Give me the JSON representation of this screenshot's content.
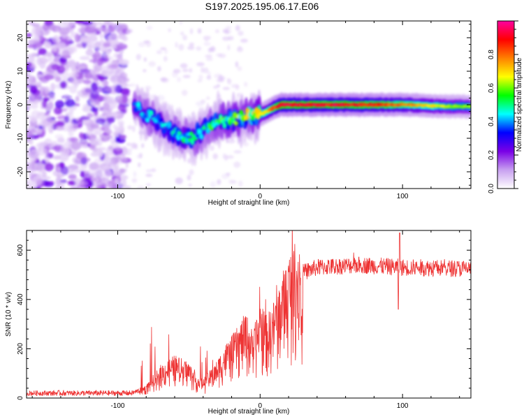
{
  "title": "S197.2025.195.06.17.E06",
  "chart_data": [
    {
      "type": "heatmap",
      "xlabel": "Height of straight line (km)",
      "ylabel": "Frequency (Hz)",
      "xlim": [
        -164,
        148
      ],
      "ylim": [
        -25,
        25
      ],
      "x_ticks": [
        -100,
        0,
        100
      ],
      "y_ticks": [
        20,
        10,
        0,
        -10,
        -20
      ],
      "colorbar": {
        "label": "Normalized spectral amplitude",
        "range": [
          0,
          1
        ],
        "ticks": [
          "0.0",
          "0.2",
          "0.4",
          "0.6",
          "0.8"
        ],
        "colors": [
          "#ffffff",
          "#c8a0f0",
          "#7a00e6",
          "#0000ff",
          "#00ffff",
          "#00ff00",
          "#ffff00",
          "#ff8000",
          "#ff0000",
          "#ff00a0"
        ]
      },
      "ridge": [
        {
          "x": -88,
          "y": 0,
          "amp": 0.35
        },
        {
          "x": -80,
          "y": -3,
          "amp": 0.4
        },
        {
          "x": -72,
          "y": -5,
          "amp": 0.4
        },
        {
          "x": -64,
          "y": -7.5,
          "amp": 0.4
        },
        {
          "x": -56,
          "y": -9.5,
          "amp": 0.42
        },
        {
          "x": -48,
          "y": -10,
          "amp": 0.45
        },
        {
          "x": -40,
          "y": -8,
          "amp": 0.45
        },
        {
          "x": -32,
          "y": -5.5,
          "amp": 0.48
        },
        {
          "x": -24,
          "y": -4.5,
          "amp": 0.5
        },
        {
          "x": -16,
          "y": -4,
          "amp": 0.55
        },
        {
          "x": -8,
          "y": -3.5,
          "amp": 0.6
        },
        {
          "x": 0,
          "y": -3,
          "amp": 0.68
        },
        {
          "x": 5,
          "y": -2,
          "amp": 0.72
        },
        {
          "x": 10,
          "y": -0.8,
          "amp": 0.85
        },
        {
          "x": 15,
          "y": 0,
          "amp": 0.95
        },
        {
          "x": 40,
          "y": 0,
          "amp": 0.92
        },
        {
          "x": 70,
          "y": 0,
          "amp": 0.9
        },
        {
          "x": 100,
          "y": 0,
          "amp": 0.82
        },
        {
          "x": 130,
          "y": -0.5,
          "amp": 0.65
        },
        {
          "x": 148,
          "y": -0.5,
          "amp": 0.6
        }
      ]
    },
    {
      "type": "line",
      "xlabel": "Height of straight line (km)",
      "ylabel": "SNR (10 * v/v)",
      "xlim": [
        -164,
        148
      ],
      "ylim": [
        0,
        680
      ],
      "x_ticks": [
        -100,
        0,
        100
      ],
      "y_ticks": [
        0,
        200,
        400,
        600
      ],
      "color": "#ee3333",
      "envelope": [
        {
          "x": -164,
          "y": 20
        },
        {
          "x": -90,
          "y": 20
        },
        {
          "x": -80,
          "y": 40
        },
        {
          "x": -70,
          "y": 100
        },
        {
          "x": -60,
          "y": 130
        },
        {
          "x": -50,
          "y": 110
        },
        {
          "x": -45,
          "y": 70
        },
        {
          "x": -40,
          "y": 60
        },
        {
          "x": -32,
          "y": 100
        },
        {
          "x": -25,
          "y": 160
        },
        {
          "x": -18,
          "y": 200
        },
        {
          "x": -10,
          "y": 260
        },
        {
          "x": -5,
          "y": 200
        },
        {
          "x": 0,
          "y": 290
        },
        {
          "x": 5,
          "y": 250
        },
        {
          "x": 10,
          "y": 300
        },
        {
          "x": 15,
          "y": 370
        },
        {
          "x": 20,
          "y": 440
        },
        {
          "x": 28,
          "y": 505
        },
        {
          "x": 40,
          "y": 530
        },
        {
          "x": 70,
          "y": 540
        },
        {
          "x": 100,
          "y": 530
        },
        {
          "x": 148,
          "y": 525
        }
      ],
      "features": [
        {
          "x": 97,
          "y": 360
        },
        {
          "x": 98,
          "y": 670
        }
      ]
    }
  ]
}
